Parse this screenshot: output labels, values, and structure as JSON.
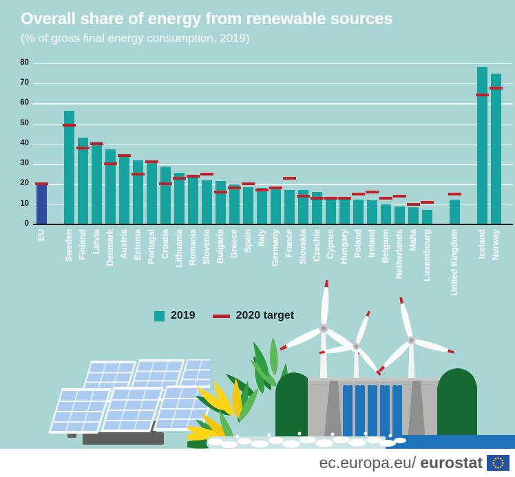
{
  "title": "Overall share of energy from renewable sources",
  "subtitle": "(% of gross final energy consumption, 2019)",
  "legend": {
    "year_label": "2019",
    "target_label": "2020 target"
  },
  "footer": {
    "url_regular": "ec.europa.eu/",
    "url_bold": "eurostat",
    "flag_icon": "eu-flag-icon"
  },
  "colors": {
    "background": "#a9d6d4",
    "bar": "#17a3a0",
    "eu_bar": "#2f4d9e",
    "target": "#c0202a",
    "grid": "#ffffff",
    "axis": "#1d1d1b",
    "title_text": "#ffffff",
    "xlabel_text": "#ffffff",
    "water": "#1e73b9",
    "footer_text": "#58585a",
    "flag_blue": "#2553a3",
    "flag_stars": "#ffd617"
  },
  "icons": [
    "solar-panel-icon",
    "corn-icon",
    "wind-turbine-icon",
    "hydro-dam-icon",
    "eu-flag-icon"
  ],
  "chart_data": {
    "type": "bar",
    "title": "Overall share of energy from renewable sources",
    "subtitle": "(% of gross final energy consumption, 2019)",
    "xlabel": "",
    "ylabel": "% of gross final energy consumption",
    "ylim": [
      0,
      80
    ],
    "yticks": [
      0,
      10,
      20,
      30,
      40,
      50,
      60,
      70,
      80
    ],
    "grid": "horizontal",
    "legend_position": "bottom",
    "series_names": [
      "2019",
      "2020 target"
    ],
    "items": [
      {
        "name": "EU",
        "value": 19.7,
        "target": 20,
        "eu_aggregate": true
      },
      {
        "name": "Sweden",
        "value": 56.4,
        "target": 49,
        "gap_before": true
      },
      {
        "name": "Finland",
        "value": 43.1,
        "target": 38
      },
      {
        "name": "Latvia",
        "value": 41.0,
        "target": 40
      },
      {
        "name": "Denmark",
        "value": 37.2,
        "target": 30
      },
      {
        "name": "Austria",
        "value": 33.6,
        "target": 34
      },
      {
        "name": "Estonia",
        "value": 31.9,
        "target": 25
      },
      {
        "name": "Portugal",
        "value": 30.6,
        "target": 31
      },
      {
        "name": "Croatia",
        "value": 28.5,
        "target": 20
      },
      {
        "name": "Lithuania",
        "value": 25.5,
        "target": 23
      },
      {
        "name": "Romania",
        "value": 24.3,
        "target": 24
      },
      {
        "name": "Slovenia",
        "value": 22.0,
        "target": 25
      },
      {
        "name": "Bulgaria",
        "value": 21.6,
        "target": 16
      },
      {
        "name": "Greece",
        "value": 19.7,
        "target": 18
      },
      {
        "name": "Spain",
        "value": 18.4,
        "target": 20
      },
      {
        "name": "Italy",
        "value": 18.2,
        "target": 17
      },
      {
        "name": "Germany",
        "value": 17.4,
        "target": 18
      },
      {
        "name": "France",
        "value": 17.2,
        "target": 23
      },
      {
        "name": "Slovakia",
        "value": 16.9,
        "target": 14
      },
      {
        "name": "Czechia",
        "value": 16.2,
        "target": 13
      },
      {
        "name": "Cyprus",
        "value": 13.8,
        "target": 13
      },
      {
        "name": "Hungary",
        "value": 12.6,
        "target": 13
      },
      {
        "name": "Poland",
        "value": 12.2,
        "target": 15
      },
      {
        "name": "Ireland",
        "value": 12.0,
        "target": 16
      },
      {
        "name": "Belgium",
        "value": 9.9,
        "target": 13
      },
      {
        "name": "Netherlands",
        "value": 8.8,
        "target": 14
      },
      {
        "name": "Malta",
        "value": 8.5,
        "target": 10
      },
      {
        "name": "Luxembourg",
        "value": 7.0,
        "target": 11
      },
      {
        "name": "United Kingdom",
        "value": 12.3,
        "target": 15,
        "gap_before": true
      },
      {
        "name": "Iceland",
        "value": 78.2,
        "target": 64,
        "gap_before": true
      },
      {
        "name": "Norway",
        "value": 74.6,
        "target": 67.5
      }
    ]
  }
}
